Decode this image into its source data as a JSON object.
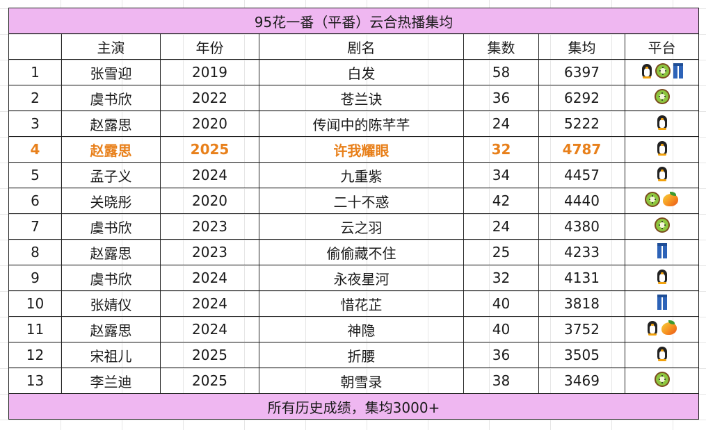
{
  "title": "95花一番（平番）云合热播集均",
  "headers": [
    "",
    "主演",
    "年份",
    "剧名",
    "集数",
    "集均",
    "平台"
  ],
  "rows": [
    {
      "rank": "1",
      "actor": "张雪迎",
      "year": "2019",
      "drama": "白发",
      "eps": "58",
      "avg": "6397",
      "platforms": [
        "penguin",
        "kiwi",
        "jeans"
      ]
    },
    {
      "rank": "2",
      "actor": "虞书欣",
      "year": "2022",
      "drama": "苍兰诀",
      "eps": "36",
      "avg": "6292",
      "platforms": [
        "kiwi"
      ]
    },
    {
      "rank": "3",
      "actor": "赵露思",
      "year": "2020",
      "drama": "传闻中的陈芊芊",
      "eps": "24",
      "avg": "5222",
      "platforms": [
        "penguin"
      ]
    },
    {
      "rank": "4",
      "actor": "赵露思",
      "year": "2025",
      "drama": "许我耀眼",
      "eps": "32",
      "avg": "4787",
      "platforms": [
        "penguin"
      ],
      "highlight": true
    },
    {
      "rank": "5",
      "actor": "孟子义",
      "year": "2024",
      "drama": "九重紫",
      "eps": "34",
      "avg": "4457",
      "platforms": [
        "penguin"
      ]
    },
    {
      "rank": "6",
      "actor": "关晓彤",
      "year": "2020",
      "drama": "二十不惑",
      "eps": "42",
      "avg": "4440",
      "platforms": [
        "kiwi",
        "mango"
      ]
    },
    {
      "rank": "7",
      "actor": "虞书欣",
      "year": "2023",
      "drama": "云之羽",
      "eps": "24",
      "avg": "4380",
      "platforms": [
        "kiwi"
      ]
    },
    {
      "rank": "8",
      "actor": "赵露思",
      "year": "2023",
      "drama": "偷偷藏不住",
      "eps": "25",
      "avg": "4233",
      "platforms": [
        "jeans"
      ]
    },
    {
      "rank": "9",
      "actor": "虞书欣",
      "year": "2024",
      "drama": "永夜星河",
      "eps": "32",
      "avg": "4131",
      "platforms": [
        "penguin"
      ]
    },
    {
      "rank": "10",
      "actor": "张婧仪",
      "year": "2024",
      "drama": "惜花芷",
      "eps": "40",
      "avg": "3818",
      "platforms": [
        "jeans"
      ]
    },
    {
      "rank": "11",
      "actor": "赵露思",
      "year": "2024",
      "drama": "神隐",
      "eps": "40",
      "avg": "3752",
      "platforms": [
        "penguin",
        "mango"
      ]
    },
    {
      "rank": "12",
      "actor": "宋祖儿",
      "year": "2025",
      "drama": "折腰",
      "eps": "36",
      "avg": "3505",
      "platforms": [
        "penguin"
      ]
    },
    {
      "rank": "13",
      "actor": "李兰迪",
      "year": "2025",
      "drama": "朝雪录",
      "eps": "38",
      "avg": "3469",
      "platforms": [
        "kiwi"
      ]
    }
  ],
  "footer": "所有历史成绩，集均3000+",
  "colors": {
    "title_bg": "#efb7f1",
    "highlight_text": "#e8801b"
  }
}
